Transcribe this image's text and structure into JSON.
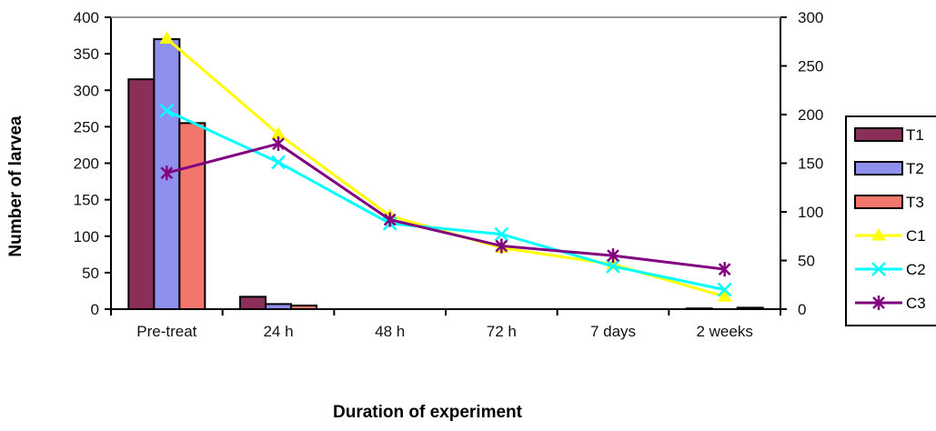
{
  "chart_data": {
    "type": "bar",
    "title": "",
    "xlabel": "Duration of experiment",
    "ylabel": "Number of larvea",
    "categories": [
      "Pre-treat",
      "24 h",
      "48 h",
      "72 h",
      "7 days",
      "2 weeks"
    ],
    "ylim": [
      0,
      400
    ],
    "y_ticks": [
      0,
      50,
      100,
      150,
      200,
      250,
      300,
      350,
      400
    ],
    "y2lim": [
      0,
      300
    ],
    "y2_ticks": [
      0,
      50,
      100,
      150,
      200,
      250,
      300
    ],
    "grid": false,
    "legend_position": "right",
    "bar_series": [
      {
        "name": "T1",
        "color": "#8b2f5a",
        "axis": "left",
        "values": [
          315,
          17,
          0,
          0,
          0,
          1
        ]
      },
      {
        "name": "T2",
        "color": "#8f8fee",
        "axis": "left",
        "values": [
          370,
          7,
          0,
          0,
          0,
          0
        ]
      },
      {
        "name": "T3",
        "color": "#f2766c",
        "axis": "left",
        "values": [
          255,
          5,
          0,
          0,
          0,
          2
        ]
      }
    ],
    "line_series": [
      {
        "name": "C1",
        "color": "#ffff00",
        "marker": "triangle",
        "axis": "right",
        "values": [
          278,
          180,
          96,
          63,
          46,
          13
        ]
      },
      {
        "name": "C2",
        "color": "#00ffff",
        "marker": "x",
        "axis": "right",
        "values": [
          204,
          151,
          88,
          77,
          44,
          20
        ]
      },
      {
        "name": "C3",
        "color": "#800080",
        "marker": "star",
        "axis": "right",
        "values": [
          140,
          170,
          92,
          65,
          55,
          41
        ]
      }
    ]
  }
}
